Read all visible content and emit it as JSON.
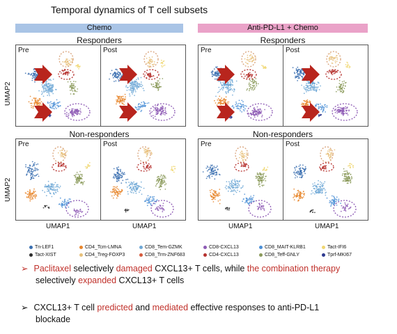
{
  "title": "Temporal dynamics of T cell subsets",
  "groups": {
    "chemo": "Chemo",
    "pd": "Anti-PD-L1 + Chemo"
  },
  "sections": {
    "responders": "Responders",
    "non_responders": "Non-responders"
  },
  "panel_tags": {
    "pre": "Pre",
    "post": "Post"
  },
  "axes": {
    "y": "UMAP2",
    "x": "UMAP1"
  },
  "legend": [
    {
      "label": "Tn-LEF1",
      "color": "#3a6fb0"
    },
    {
      "label": "Tact-XIST",
      "color": "#2d2d2d"
    },
    {
      "label": "CD4_Tcm-LMNA",
      "color": "#e8862c"
    },
    {
      "label": "CD4_Treg-FOXP3",
      "color": "#e7c07a"
    },
    {
      "label": "CD8_Tem-GZMK",
      "color": "#6fa8d6"
    },
    {
      "label": "CD8_Trm-ZNF683",
      "color": "#d65b3c"
    },
    {
      "label": "CD8-CXCL13",
      "color": "#8e5bb5"
    },
    {
      "label": "CD4-CXCL13",
      "color": "#b6322f"
    },
    {
      "label": "CD8_MAIT-KLRB1",
      "color": "#4b8fd6"
    },
    {
      "label": "CD8_Teff-GNLY",
      "color": "#8b9a5b"
    },
    {
      "label": "Tact-IFI6",
      "color": "#f0d772"
    },
    {
      "label": "Tprf-MKI67",
      "color": "#2e3a8f"
    }
  ],
  "bullet1": {
    "arrow": "➢",
    "p1": "Paclitaxel",
    "p2": " selectively ",
    "p3": "damaged",
    "p4": " CXCL13+ T cells, while ",
    "p5": "the combination therapy",
    "p6": "selectively ",
    "p7": "expanded",
    "p8": " CXCL13+ T cells"
  },
  "bullet2": {
    "arrow": "➢",
    "p1": "CXCL13+ T cell ",
    "p2": "predicted",
    "p3": " and ",
    "p4": "mediated",
    "p5": " effective responses to anti-PD-L1",
    "p6": "blockade"
  }
}
